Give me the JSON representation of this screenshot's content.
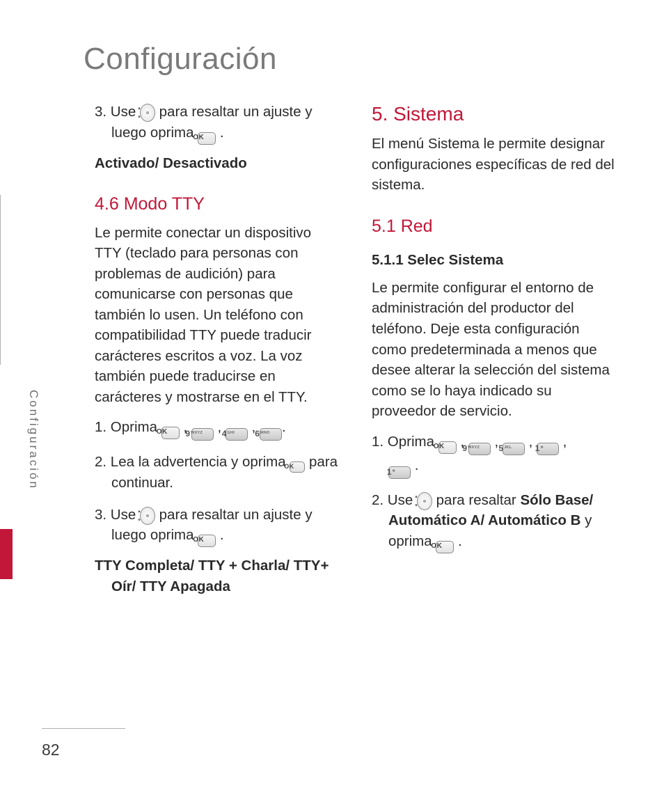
{
  "page": {
    "title": "Configuración",
    "side_label": "Configuración",
    "number": "82"
  },
  "colors": {
    "accent": "#c21739",
    "title_gray": "#7a7a7a",
    "body": "#2b2b2b",
    "side_gray": "#6e6e6e",
    "rule": "#b0b0b0"
  },
  "keys": {
    "ok": "OK",
    "nav_up": "▴",
    "nav_down": "▾",
    "k9_big": "9",
    "k9_sub": "WXYZ",
    "k4_big": "4",
    "k4_sub": "GHI",
    "k6_big": "6",
    "k6_sub": "MNO",
    "k5_big": "5",
    "k5_sub": "JKL",
    "k1_big": "1",
    "k1_sub": "✳"
  },
  "left": {
    "step3_a": "3. Use ",
    "step3_b": " para resaltar un ajuste y luego oprima ",
    "step3_c": " .",
    "step3_opts": "Activado/ Desactivado",
    "h46": "4.6 Modo TTY",
    "p46": "Le permite conectar un dispositivo TTY (teclado para personas con problemas de audición) para comunicarse con personas que también lo usen. Un teléfono con compatibilidad TTY puede traducir carácteres escritos a voz. La voz también puede traducirse en carácteres y mostrarse en el TTY.",
    "s1_a": "1. Oprima ",
    "comma_sp": " , ",
    "period": ".",
    "s2_a": "2. Lea la advertencia y oprima ",
    "s2_b": " para continuar.",
    "s3_a": "3. Use ",
    "s3_b": " para resaltar un ajuste y luego oprima ",
    "s3_c": " .",
    "s3_opts": "TTY Completa/ TTY + Charla/ TTY+ Oír/ TTY Apagada"
  },
  "right": {
    "h5": "5. Sistema",
    "p5": "El menú Sistema le permite designar configuraciones específicas de red del sistema.",
    "h51": "5.1 Red",
    "h511": "5.1.1 Selec Sistema",
    "p511": "Le permite configurar el entorno de administración del productor del teléfono. Deje esta configuración como predeterminada a menos que desee alterar la selección del sistema como se lo haya indicado su proveedor de servicio.",
    "s1_a": "1. Oprima ",
    "comma_sp": " , ",
    "period": " .",
    "s2_a": "2. Use ",
    "s2_b": " para resaltar ",
    "s2_bold": "Sólo Base/ Automático A/ Automático B",
    "s2_c": " y oprima ",
    "s2_d": " ."
  }
}
